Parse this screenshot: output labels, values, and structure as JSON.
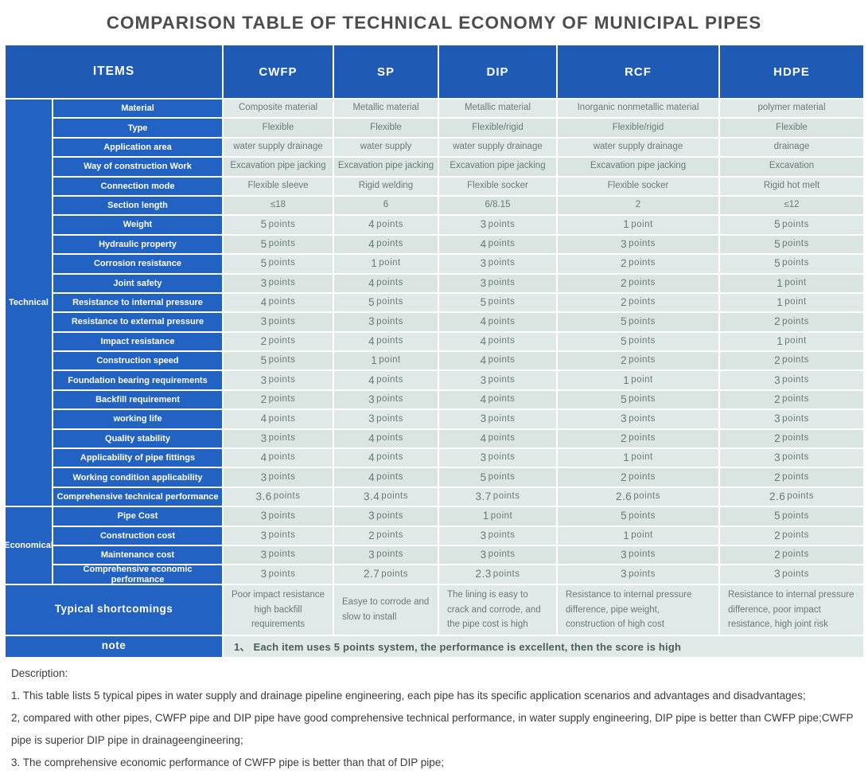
{
  "title": "COMPARISON TABLE OF TECHNICAL ECONOMY OF MUNICIPAL PIPES",
  "colors": {
    "header_blue": "#1f5ab4",
    "label_blue": "#2262c2",
    "cell_bg": "#e0e9e7",
    "cell_bg_alt": "#dae4e1",
    "value_text": "#6a7977",
    "title_text": "#4d4d4d"
  },
  "table": {
    "columns": [
      "ITEMS",
      "CWFP",
      "SP",
      "DIP",
      "RCF",
      "HDPE"
    ],
    "groups": [
      {
        "label": "Technical",
        "rows": [
          {
            "label": "Material",
            "values": [
              "Composite material",
              "Metallic material",
              "Metallic material",
              "Inorganic  nonmetallic  material",
              "polymer material"
            ]
          },
          {
            "label": "Type",
            "values": [
              "Flexible",
              "Flexible",
              "Flexible/rigid",
              "Flexible/rigid",
              "Flexible"
            ]
          },
          {
            "label": "Application area",
            "values": [
              "water supply drainage",
              "water supply",
              "water supply drainage",
              "water supply drainage",
              "drainage"
            ]
          },
          {
            "label": "Way of construction Work",
            "values": [
              "Excavation pipe jacking",
              "Excavation pipe jacking",
              "Excavation pipe jacking",
              "Excavation pipe jacking",
              "Excavation"
            ]
          },
          {
            "label": "Connection mode",
            "values": [
              "Flexible sleeve",
              "Rigid welding",
              "Flexible socker",
              "Flexible socker",
              "Rigid hot melt"
            ]
          },
          {
            "label": "Section length",
            "values": [
              "≤18",
              "6",
              "6/8.15",
              "2",
              "≤12"
            ]
          },
          {
            "label": "Weight",
            "values": [
              "5 points",
              "4 points",
              "3 points",
              "1 point",
              "5 points"
            ]
          },
          {
            "label": "Hydraulic property",
            "values": [
              "5 points",
              "4 points",
              "4 points",
              "3 points",
              "5 points"
            ]
          },
          {
            "label": "Corrosion resistance",
            "values": [
              "5 points",
              "1 point",
              "3 points",
              "2 points",
              "5 points"
            ]
          },
          {
            "label": "Joint safety",
            "values": [
              "3 points",
              "4 points",
              "3 points",
              "2 points",
              "1 point"
            ]
          },
          {
            "label": "Resistance to internal pressure",
            "values": [
              "4 points",
              "5 points",
              "5 points",
              "2 points",
              "1 point"
            ]
          },
          {
            "label": "Resistance to external pressure",
            "values": [
              "3 points",
              "3 points",
              "4 points",
              "5 points",
              "2 points"
            ]
          },
          {
            "label": "Impact resistance",
            "values": [
              "2 points",
              "4 points",
              "4 points",
              "5 points",
              "1 point"
            ]
          },
          {
            "label": "Construction speed",
            "values": [
              "5 points",
              "1 point",
              "4 points",
              "2 points",
              "2 points"
            ]
          },
          {
            "label": "Foundation bearing requirements",
            "values": [
              "3 points",
              "4 points",
              "3 points",
              "1 point",
              "3 points"
            ]
          },
          {
            "label": "Backfill requirement",
            "values": [
              "2 points",
              "3 points",
              "4 points",
              "5 points",
              "2 points"
            ]
          },
          {
            "label": "working life",
            "values": [
              "4 points",
              "3 points",
              "3 points",
              "3 points",
              "3 points"
            ]
          },
          {
            "label": "Quality stability",
            "values": [
              "3 points",
              "4 points",
              "4 points",
              "2 points",
              "2 points"
            ]
          },
          {
            "label": "Applicability of pipe fittings",
            "values": [
              "4 points",
              "4 points",
              "3 points",
              "1 point",
              "3 points"
            ]
          },
          {
            "label": "Working condition applicability",
            "values": [
              "3 points",
              "4 points",
              "5 points",
              "2 points",
              "2 points"
            ]
          },
          {
            "label": "Comprehensive technical performance",
            "values": [
              "3.6 points",
              "3.4 points",
              "3.7 points",
              "2.6 points",
              "2.6 points"
            ]
          }
        ]
      },
      {
        "label": "Economical",
        "rows": [
          {
            "label": "Pipe Cost",
            "values": [
              "3 points",
              "3 points",
              "1 point",
              "5 points",
              "5 points"
            ]
          },
          {
            "label": "Construction cost",
            "values": [
              "3 points",
              "2 points",
              "3 points",
              "1 point",
              "2 points"
            ]
          },
          {
            "label": "Maintenance cost",
            "values": [
              "3 points",
              "3 points",
              "3 points",
              "3 points",
              "2 points"
            ]
          },
          {
            "label": "Comprehensive economic performance",
            "values": [
              "3 points",
              "2.7 points",
              "2.3 points",
              "3 points",
              "3 points"
            ]
          }
        ]
      }
    ],
    "shortcomings": {
      "label": "Typical shortcomings",
      "values": [
        "Poor impact resistance high backfill requirements",
        "Easye to corrode and slow to install",
        "The lining is easy to crack and corrode, and the pipe cost is high",
        "Resistance to internal pressure difference, pipe weight, construction of high cost",
        "Resistance to internal pressure difference, poor impact resistance, high joint risk"
      ]
    },
    "note": {
      "label": "note",
      "text": "1、 Each item uses 5 points system, the performance is excellent, then the score is high"
    }
  },
  "description": {
    "heading": "Description:",
    "lines": [
      "1. This table lists 5 typical pipes in water supply and drainage pipeline engineering, each pipe has its specific application scenarios and advantages and disadvantages;",
      "2, compared with other pipes, CWFP pipe and DIP pipe have good comprehensive technical performance, in water supply engineering, DIP pipe is better than CWFP pipe;CWFP pipe is superior DIP pipe in drainageengineering;",
      "3. The comprehensive economic performance of CWFP pipe is better than that of DIP pipe;"
    ]
  }
}
